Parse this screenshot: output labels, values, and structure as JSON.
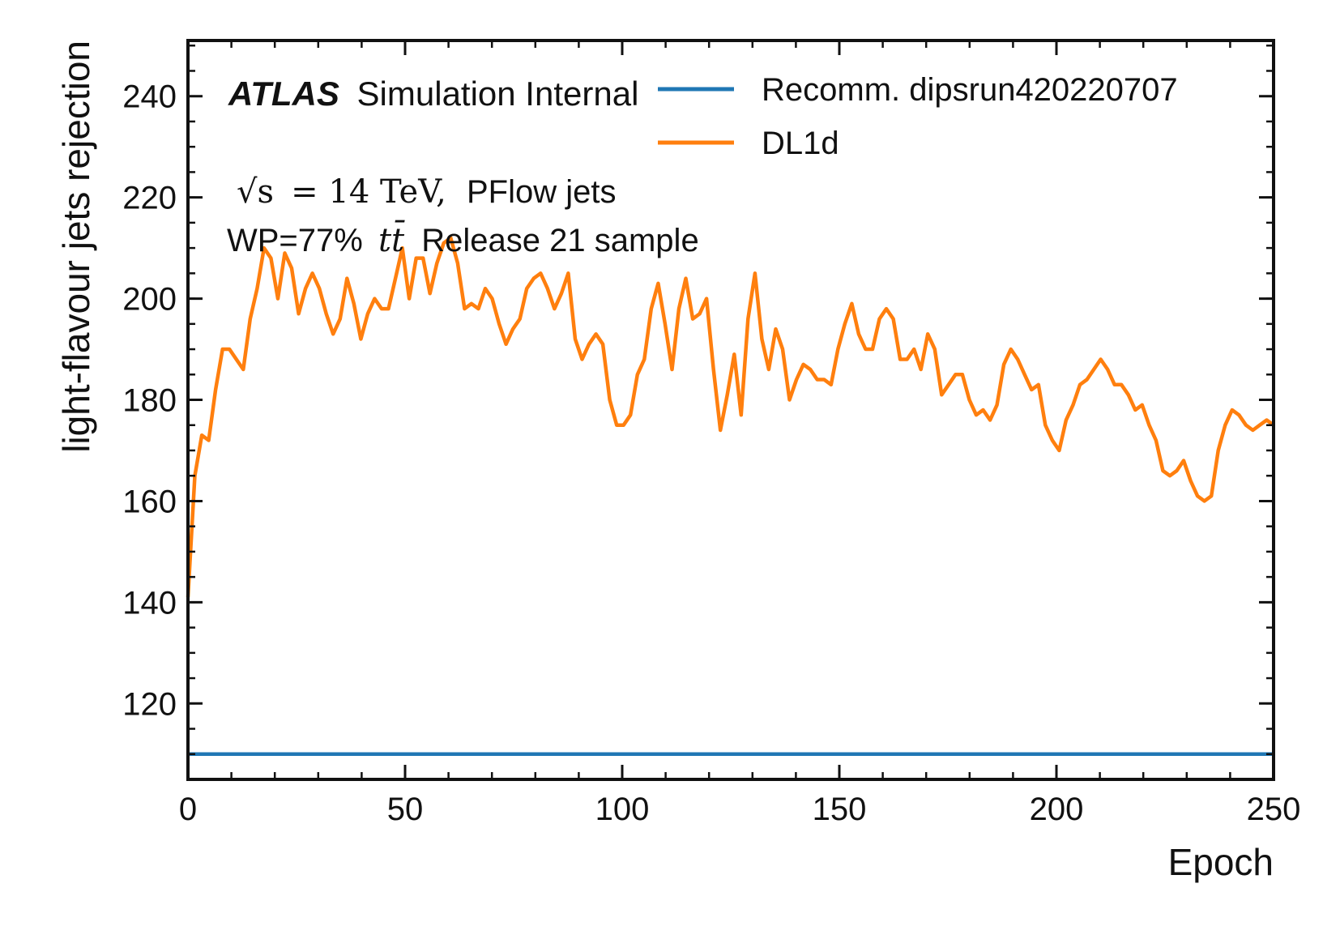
{
  "chart_data": {
    "type": "line",
    "xlabel": "Epoch",
    "ylabel": "light-flavour jets rejection",
    "xlim": [
      0,
      250
    ],
    "ylim": [
      105,
      251
    ],
    "xticks": [
      0,
      50,
      100,
      150,
      200,
      250
    ],
    "yticks": [
      120,
      140,
      160,
      180,
      200,
      220,
      240
    ],
    "x_minor_step": 10,
    "y_minor_step": 5,
    "grid": false,
    "legend_position": "top-right",
    "annotations": {
      "experiment": "ATLAS",
      "status": "Simulation Internal",
      "energy_symbol": "√s",
      "energy_value": "= 14 TeV,",
      "jets": "PFlow jets",
      "wp": "WP=77%",
      "sample_symbol": "tt̄",
      "sample": "Release 21 sample"
    },
    "series": [
      {
        "name": "Recomm. dipsrun420220707",
        "color": "#1f77b4",
        "constant": 110
      },
      {
        "name": "DL1d",
        "color": "#ff7f0e",
        "values": [
          141,
          165,
          173,
          172,
          182,
          190,
          190,
          188,
          186,
          196,
          202,
          210,
          208,
          200,
          209,
          206,
          197,
          202,
          205,
          202,
          197,
          193,
          196,
          204,
          199,
          192,
          197,
          200,
          198,
          198,
          204,
          210,
          200,
          208,
          208,
          201,
          207,
          211,
          212,
          207,
          198,
          199,
          198,
          202,
          200,
          195,
          191,
          194,
          196,
          202,
          204,
          205,
          202,
          198,
          201,
          205,
          192,
          188,
          191,
          193,
          191,
          180,
          175,
          175,
          177,
          185,
          188,
          198,
          203,
          195,
          186,
          198,
          204,
          196,
          197,
          200,
          186,
          174,
          181,
          189,
          177,
          196,
          205,
          192,
          186,
          194,
          190,
          180,
          184,
          187,
          186,
          184,
          184,
          183,
          190,
          195,
          199,
          193,
          190,
          190,
          196,
          198,
          196,
          188,
          188,
          190,
          186,
          193,
          190,
          181,
          183,
          185,
          185,
          180,
          177,
          178,
          176,
          179,
          187,
          190,
          188,
          185,
          182,
          183,
          175,
          172,
          170,
          176,
          179,
          183,
          184,
          186,
          188,
          186,
          183,
          183,
          181,
          178,
          179,
          175,
          172,
          166,
          165,
          166,
          168,
          164,
          161,
          160,
          161,
          170,
          175,
          178,
          177,
          175,
          174,
          175,
          176,
          175
        ]
      }
    ]
  }
}
